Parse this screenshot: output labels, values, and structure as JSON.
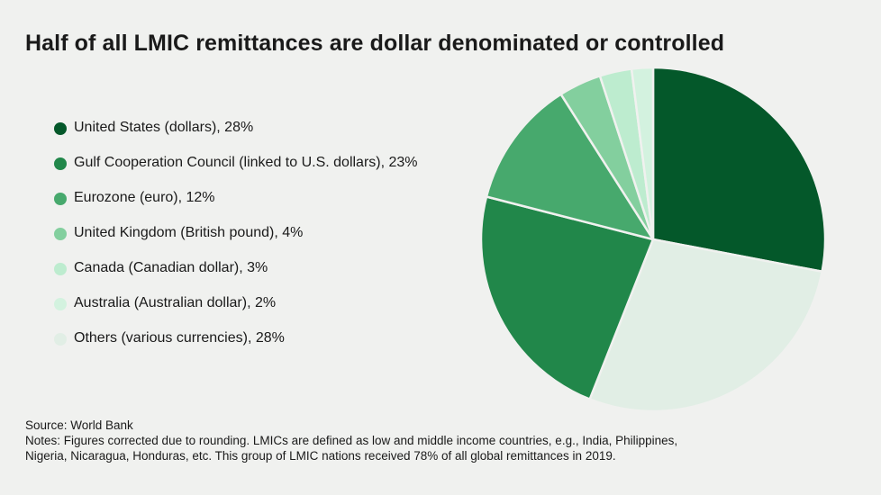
{
  "title": "Half of all LMIC remittances are dollar denominated or controlled",
  "chart_data": {
    "type": "pie",
    "title": "Half of all LMIC remittances are dollar denominated or controlled",
    "slices": [
      {
        "label": "United States (dollars), 28%",
        "value": 28,
        "color": "#04582a"
      },
      {
        "label": "Gulf Cooperation Council (linked to U.S. dollars), 23%",
        "value": 23,
        "color": "#21874a"
      },
      {
        "label": "Eurozone (euro), 12%",
        "value": 12,
        "color": "#47a96d"
      },
      {
        "label": "United Kingdom (British pound), 4%",
        "value": 4,
        "color": "#83cf9e"
      },
      {
        "label": "Canada (Canadian dollar), 3%",
        "value": 3,
        "color": "#bdeccf"
      },
      {
        "label": "Australia (Australian dollar), 2%",
        "value": 2,
        "color": "#d3f2df"
      },
      {
        "label": "Others (various currencies), 28%",
        "value": 28,
        "color": "#e1eee5"
      }
    ],
    "legend_position": "left",
    "slice_order": [
      "United States (dollars), 28%",
      "Others (various currencies), 28%",
      "Gulf Cooperation Council (linked to U.S. dollars), 23%",
      "Eurozone (euro), 12%",
      "United Kingdom (British pound), 4%",
      "Canada (Canadian dollar), 3%",
      "Australia (Australian dollar), 2%"
    ],
    "direction": "clockwise from top"
  },
  "footer": {
    "source": "Source: World Bank",
    "notes_line1": "Notes: Figures corrected due to rounding. LMICs are defined as low and middle income countries, e.g., India, Philippines,",
    "notes_line2": "Nigeria, Nicaragua, Honduras, etc. This group of LMIC nations received 78% of all global remittances in 2019."
  }
}
